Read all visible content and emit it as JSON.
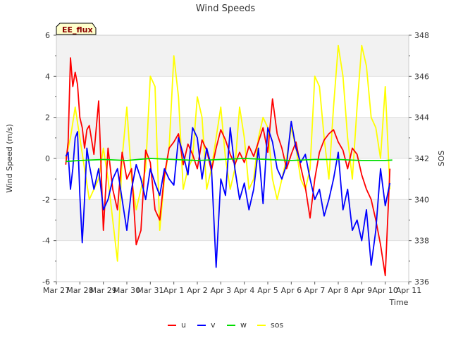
{
  "chart_data": {
    "type": "line",
    "title": "Wind Speeds",
    "xlabel": "Time",
    "ylabel": "Wind Speed (m/s)",
    "y2label": "SOS",
    "site_badge": "EE_flux",
    "ylim": [
      -6,
      6
    ],
    "y2lim": [
      336,
      348
    ],
    "xlim": [
      0,
      15
    ],
    "x_ticks": [
      "Mar 27",
      "Mar 28",
      "Mar 29",
      "Mar 30",
      "Mar 31",
      "Apr 1",
      "Apr 2",
      "Apr 3",
      "Apr 4",
      "Apr 5",
      "Apr 6",
      "Apr 7",
      "Apr 8",
      "Apr 9",
      "Apr 10",
      "Apr 11"
    ],
    "y_ticks": [
      -6,
      -4,
      -2,
      0,
      2,
      4,
      6
    ],
    "y2_ticks": [
      336,
      338,
      340,
      342,
      344,
      346,
      348
    ],
    "grid": "horizontal bands",
    "legend_position": "bottom-center",
    "colors": {
      "u": "#ff0000",
      "v": "#0000ff",
      "w": "#00dd00",
      "sos": "#ffff00"
    },
    "series": [
      {
        "name": "u",
        "axis": "left",
        "x": [
          0.4,
          0.5,
          0.6,
          0.7,
          0.8,
          0.9,
          1.0,
          1.1,
          1.2,
          1.3,
          1.4,
          1.6,
          1.8,
          2.0,
          2.2,
          2.4,
          2.6,
          2.8,
          3.0,
          3.2,
          3.4,
          3.6,
          3.8,
          4.0,
          4.2,
          4.4,
          4.6,
          4.8,
          5.0,
          5.2,
          5.4,
          5.6,
          5.8,
          6.0,
          6.2,
          6.4,
          6.6,
          6.8,
          7.0,
          7.2,
          7.4,
          7.6,
          7.8,
          8.0,
          8.2,
          8.4,
          8.6,
          8.8,
          9.0,
          9.2,
          9.4,
          9.6,
          9.8,
          10.0,
          10.2,
          10.4,
          10.6,
          10.8,
          11.0,
          11.2,
          11.4,
          11.6,
          11.8,
          12.0,
          12.2,
          12.4,
          12.6,
          12.8,
          13.0,
          13.2,
          13.4,
          13.6,
          13.8,
          14.0,
          14.2
        ],
        "values": [
          -0.3,
          0.8,
          4.9,
          3.5,
          4.2,
          3.6,
          2.0,
          1.5,
          0.5,
          1.4,
          1.6,
          0.2,
          2.8,
          -3.5,
          0.5,
          -1.5,
          -2.5,
          0.3,
          -1.0,
          -0.5,
          -4.2,
          -3.5,
          0.4,
          -0.2,
          -2.5,
          -3.0,
          -0.8,
          0.5,
          0.8,
          1.2,
          -0.3,
          0.7,
          0.2,
          -0.5,
          0.9,
          0.4,
          -0.6,
          0.5,
          1.4,
          0.9,
          0.2,
          -0.3,
          0.3,
          -0.2,
          0.6,
          0.1,
          0.8,
          1.5,
          0.3,
          2.9,
          1.2,
          0.5,
          -0.5,
          0.2,
          0.8,
          -0.4,
          -1.4,
          -2.9,
          -1.0,
          0.3,
          0.9,
          1.2,
          1.4,
          0.8,
          0.4,
          -0.5,
          0.5,
          0.2,
          -0.8,
          -1.5,
          -2.0,
          -3.0,
          -4.2,
          -5.7,
          -0.5
        ]
      },
      {
        "name": "v",
        "axis": "left",
        "x": [
          0.4,
          0.5,
          0.6,
          0.7,
          0.8,
          0.9,
          1.0,
          1.1,
          1.2,
          1.3,
          1.4,
          1.6,
          1.8,
          2.0,
          2.2,
          2.4,
          2.6,
          2.8,
          3.0,
          3.2,
          3.4,
          3.6,
          3.8,
          4.0,
          4.2,
          4.4,
          4.6,
          4.8,
          5.0,
          5.2,
          5.4,
          5.6,
          5.8,
          6.0,
          6.2,
          6.4,
          6.6,
          6.8,
          7.0,
          7.2,
          7.4,
          7.6,
          7.8,
          8.0,
          8.2,
          8.4,
          8.6,
          8.8,
          9.0,
          9.2,
          9.4,
          9.6,
          9.8,
          10.0,
          10.2,
          10.4,
          10.6,
          10.8,
          11.0,
          11.2,
          11.4,
          11.6,
          11.8,
          12.0,
          12.2,
          12.4,
          12.6,
          12.8,
          13.0,
          13.2,
          13.4,
          13.6,
          13.8,
          14.0,
          14.2
        ],
        "values": [
          0.1,
          0.3,
          -1.5,
          -0.5,
          1.0,
          1.3,
          -1.8,
          -4.1,
          -2.0,
          0.5,
          -0.3,
          -1.5,
          -0.5,
          -2.5,
          -2.0,
          -1.0,
          -0.5,
          -2.0,
          -3.5,
          -1.5,
          -0.3,
          -1.0,
          -2.0,
          -0.5,
          -1.2,
          -1.8,
          -0.5,
          -1.0,
          -1.3,
          1.0,
          0.2,
          -0.8,
          1.5,
          1.0,
          -1.0,
          0.5,
          -0.4,
          -5.3,
          -1.0,
          -1.8,
          1.5,
          -0.5,
          -2.0,
          -1.2,
          -2.5,
          -1.5,
          0.5,
          -2.2,
          1.5,
          0.8,
          -0.5,
          -1.0,
          -0.3,
          1.8,
          0.5,
          -0.2,
          0.2,
          -1.0,
          -2.0,
          -1.5,
          -2.8,
          -2.0,
          -1.0,
          0.3,
          -2.5,
          -1.5,
          -3.5,
          -3.0,
          -4.0,
          -2.5,
          -5.2,
          -3.5,
          -0.5,
          -2.3,
          -1.2
        ]
      },
      {
        "name": "w",
        "axis": "left",
        "x": [
          0.4,
          1.0,
          2.0,
          3.0,
          4.0,
          5.0,
          6.0,
          7.0,
          8.0,
          9.0,
          10.0,
          11.0,
          12.0,
          13.0,
          14.0,
          14.3
        ],
        "values": [
          -0.15,
          -0.1,
          -0.05,
          -0.1,
          0.0,
          -0.05,
          -0.1,
          -0.05,
          0.0,
          -0.05,
          -0.1,
          -0.05,
          -0.05,
          -0.1,
          -0.1,
          -0.08
        ]
      },
      {
        "name": "sos",
        "axis": "right",
        "x": [
          0.4,
          0.6,
          0.8,
          1.0,
          1.2,
          1.4,
          1.6,
          1.8,
          2.0,
          2.2,
          2.4,
          2.6,
          2.8,
          3.0,
          3.2,
          3.4,
          3.6,
          3.8,
          4.0,
          4.2,
          4.4,
          4.6,
          4.8,
          5.0,
          5.2,
          5.4,
          5.6,
          5.8,
          6.0,
          6.2,
          6.4,
          6.6,
          6.8,
          7.0,
          7.2,
          7.4,
          7.6,
          7.8,
          8.0,
          8.2,
          8.4,
          8.6,
          8.8,
          9.0,
          9.2,
          9.4,
          9.6,
          9.8,
          10.0,
          10.2,
          10.4,
          10.6,
          10.8,
          11.0,
          11.2,
          11.4,
          11.6,
          11.8,
          12.0,
          12.2,
          12.4,
          12.6,
          12.8,
          13.0,
          13.2,
          13.4,
          13.6,
          13.8,
          14.0,
          14.2
        ],
        "values": [
          342.0,
          343.0,
          344.5,
          343.0,
          341.5,
          340.0,
          340.5,
          341.0,
          342.5,
          341.0,
          339.0,
          337.0,
          342.0,
          344.5,
          341.0,
          339.5,
          340.5,
          341.5,
          346.0,
          345.5,
          338.5,
          341.0,
          342.5,
          347.0,
          345.0,
          340.5,
          341.5,
          342.0,
          345.0,
          344.0,
          340.5,
          341.5,
          343.0,
          344.5,
          342.0,
          340.5,
          341.5,
          344.5,
          343.0,
          340.5,
          341.0,
          343.0,
          344.0,
          343.5,
          341.0,
          340.0,
          341.0,
          342.0,
          343.5,
          342.5,
          341.0,
          340.5,
          341.5,
          346.0,
          345.5,
          343.0,
          341.0,
          344.5,
          347.5,
          346.0,
          343.0,
          341.0,
          344.5,
          347.5,
          346.5,
          344.0,
          343.5,
          342.0,
          345.5,
          340.5
        ]
      }
    ]
  }
}
